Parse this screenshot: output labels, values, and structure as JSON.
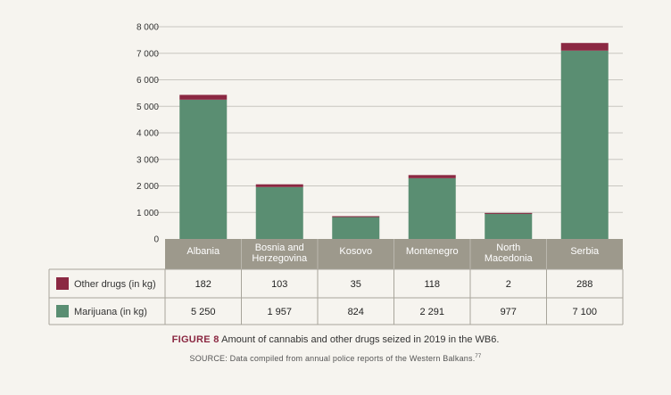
{
  "colors": {
    "marijuana": "#5a8e72",
    "other": "#8b2842",
    "header": "#9d998c",
    "table_border": "#a8a59b",
    "grid": "#c8c6c0"
  },
  "chart_data": {
    "type": "bar",
    "stacked": true,
    "categories": [
      [
        "Albania"
      ],
      [
        "Bosnia and",
        "Herzegovina"
      ],
      [
        "Kosovo"
      ],
      [
        "Montenegro"
      ],
      [
        "North",
        "Macedonia"
      ],
      [
        "Serbia"
      ]
    ],
    "series": [
      {
        "name": "Marijuana (in kg)",
        "color": "#5a8e72",
        "values": [
          5250,
          1957,
          824,
          2291,
          977,
          7100
        ],
        "display": [
          "5 250",
          "1 957",
          "824",
          "2 291",
          "977",
          "7 100"
        ]
      },
      {
        "name": "Other drugs (in kg)",
        "color": "#8b2842",
        "values": [
          182,
          103,
          35,
          118,
          2,
          288
        ],
        "display": [
          "182",
          "103",
          "35",
          "118",
          "2",
          "288"
        ]
      }
    ],
    "ylim": [
      0,
      8000
    ],
    "yticks": [
      0,
      1000,
      2000,
      3000,
      4000,
      5000,
      6000,
      7000,
      8000
    ],
    "ytick_labels": [
      "0",
      "1 000",
      "2 000",
      "3 000",
      "4 000",
      "5 000",
      "6 000",
      "7 000",
      "8 000"
    ],
    "grid": true,
    "legend": "table-left"
  },
  "caption": {
    "label": "FIGURE 8",
    "text": " Amount of cannabis and other drugs seized in 2019 in the WB6.",
    "source": "SOURCE: Data compiled from annual police reports of the Western Balkans.",
    "source_ref": "77"
  }
}
